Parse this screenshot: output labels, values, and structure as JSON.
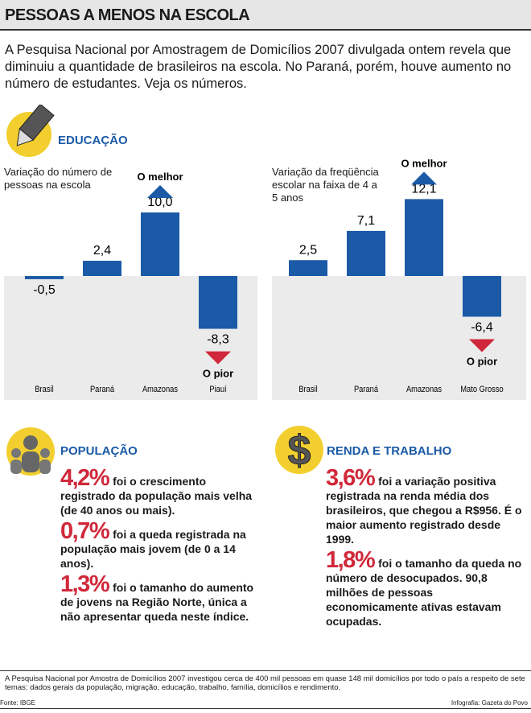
{
  "header": {
    "title": "PESSOAS A MENOS NA ESCOLA"
  },
  "intro": "A Pesquisa Nacional por Amostragem de Domicílios 2007 divulgada ontem revela que diminuiu a quantidade de brasileiros na escola. No Paraná, porém, houve aumento no número de estudantes. Veja os números.",
  "education": {
    "title": "EDUCAÇÃO"
  },
  "chart_data": [
    {
      "type": "bar",
      "ylabel": "Variação do número de pessoas na escola",
      "categories": [
        "Brasil",
        "Paraná",
        "Amazonas",
        "Piauí"
      ],
      "values": [
        -0.5,
        2.4,
        10.0,
        -8.3
      ],
      "value_labels": [
        "-0,5",
        "2,4",
        "10,0",
        "-8,3"
      ],
      "color": "#1b5aa6",
      "annotations": [
        "O melhor",
        "O pior"
      ]
    },
    {
      "type": "bar",
      "ylabel": "Variação da freqüência escolar na faixa de 4 a 5 anos",
      "categories": [
        "Brasil",
        "Paraná",
        "Amazonas",
        "Mato Grosso"
      ],
      "values": [
        2.5,
        7.1,
        12.1,
        -6.4
      ],
      "value_labels": [
        "2,5",
        "7,1",
        "12,1",
        "-6,4"
      ],
      "color": "#1b5aa6",
      "annotations": [
        "O melhor",
        "O pior"
      ]
    }
  ],
  "population": {
    "title": "POPULAÇÃO",
    "items": [
      {
        "highlight": "4,2%",
        "text": "foi o crescimento registrado da população mais velha (de 40 anos ou mais)."
      },
      {
        "highlight": "0,7%",
        "text": "foi a queda registrada na população mais jovem (de 0 a 14 anos)."
      },
      {
        "highlight": "1,3%",
        "text": "foi o tamanho do aumento de jovens na Região Norte, única a não apresentar queda neste índice."
      }
    ]
  },
  "income": {
    "title": "RENDA E TRABALHO",
    "items": [
      {
        "highlight": "3,6%",
        "text": "foi a variação positiva registrada na renda média dos brasileiros, que chegou a R$956. É o maior aumento registrado desde 1999."
      },
      {
        "highlight": "1,8%",
        "text": "foi o tamanho da queda no número de desocupados. 90,8 milhões de pessoas economicamente ativas estavam ocupadas."
      }
    ]
  },
  "footer": {
    "note": "A Pesquisa Nacional por Amostra de Domicílios 2007 investigou cerca de 400 mil pessoas em quase 148 mil domicílios por todo o país a respeito de sete temas: dados gerais da população, migração, educação, trabalho, família, domicílios e rendimento.",
    "source": "Fonte: IBGE",
    "credit": "Infografia: Gazeta do Povo"
  }
}
